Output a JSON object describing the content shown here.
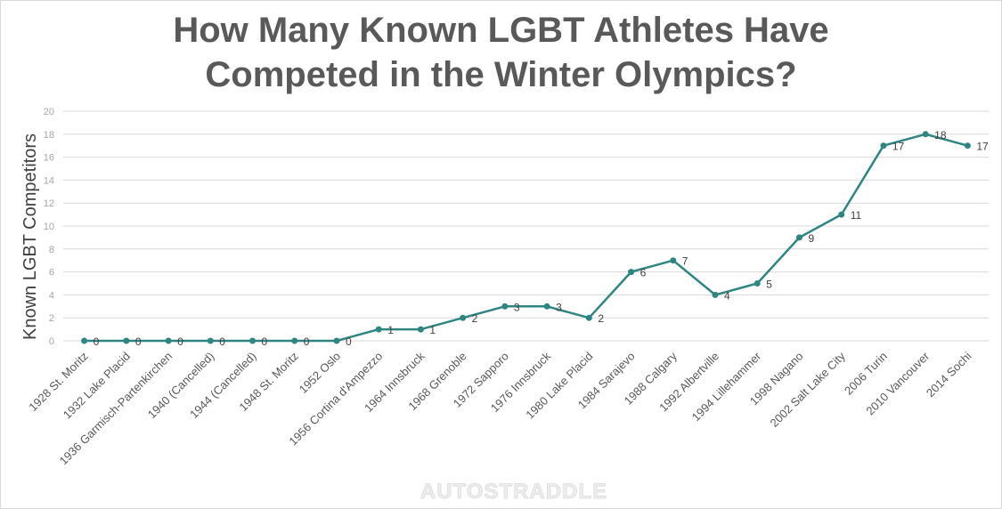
{
  "chart_data": {
    "type": "line",
    "title_lines": [
      "How Many Known LGBT Athletes Have",
      "Competed in the Winter Olympics?"
    ],
    "xlabel": "",
    "ylabel": "Known LGBT Competitors",
    "ylim": [
      0,
      20
    ],
    "yticks": [
      0,
      2,
      4,
      6,
      8,
      10,
      12,
      14,
      16,
      18,
      20
    ],
    "grid": true,
    "legend": "none",
    "line_color": "#2e8582",
    "categories": [
      "1928 St. Moritz",
      "1932 Lake Placid",
      "1936 Garmisch-Partenkirchen",
      "1940 (Cancelled)",
      "1944 (Cancelled)",
      "1948 St. Moritz",
      "1952 Oslo",
      "1956 Cortina d'Ampezzo",
      "1964 Innsbruck",
      "1968 Grenoble",
      "1972 Sapporo",
      "1976 Innsbruck",
      "1980 Lake Placid",
      "1984 Sarajevo",
      "1988 Calgary",
      "1992 Albertville",
      "1994 Lillehammer",
      "1998 Nagano",
      "2002 Salt Lake City",
      "2006 Turin",
      "2010 Vancouver",
      "2014 Sochi"
    ],
    "series": [
      {
        "values": [
          0,
          0,
          0,
          0,
          0,
          0,
          0,
          1,
          1,
          2,
          3,
          3,
          2,
          6,
          7,
          4,
          5,
          9,
          11,
          17,
          18,
          17
        ]
      }
    ]
  },
  "watermark": "AUTOSTRADDLE"
}
